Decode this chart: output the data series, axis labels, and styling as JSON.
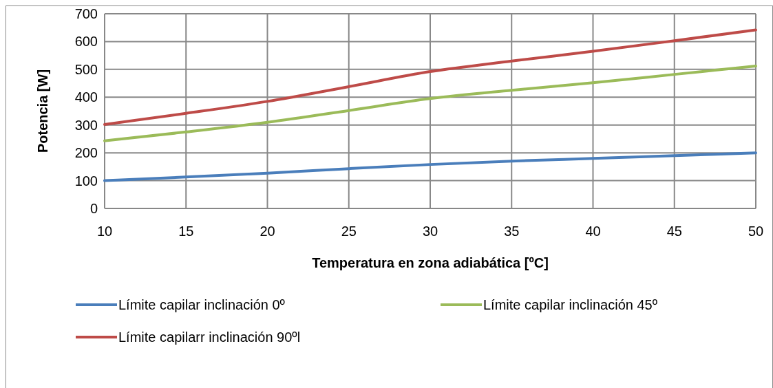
{
  "chart_data": {
    "type": "line",
    "xlabel": "Temperatura en zona adiabática [ºC]",
    "ylabel": "Potencia [W]",
    "x": [
      10,
      15,
      20,
      25,
      30,
      35,
      40,
      45,
      50
    ],
    "series": [
      {
        "name": "Límite capilar inclinación 0º",
        "color": "#4a7ebb",
        "values": [
          100,
          113,
          127,
          143,
          158,
          170,
          180,
          190,
          200
        ]
      },
      {
        "name": "Límite capilar inclinación 45º",
        "color": "#9bbb59",
        "values": [
          243,
          275,
          310,
          352,
          395,
          425,
          452,
          482,
          512
        ]
      },
      {
        "name": "Límite capilarr inclinación 90ºl",
        "color": "#be4b48",
        "values": [
          302,
          342,
          385,
          438,
          492,
          530,
          565,
          603,
          642
        ]
      }
    ],
    "xlim": [
      10,
      50
    ],
    "xticks": [
      10,
      15,
      20,
      25,
      30,
      35,
      40,
      45,
      50
    ],
    "ylim": [
      0,
      700
    ],
    "yticks": [
      0,
      100,
      200,
      300,
      400,
      500,
      600,
      700
    ],
    "grid": true,
    "legend": "bottom",
    "marker": "none",
    "line_style": "solid"
  }
}
